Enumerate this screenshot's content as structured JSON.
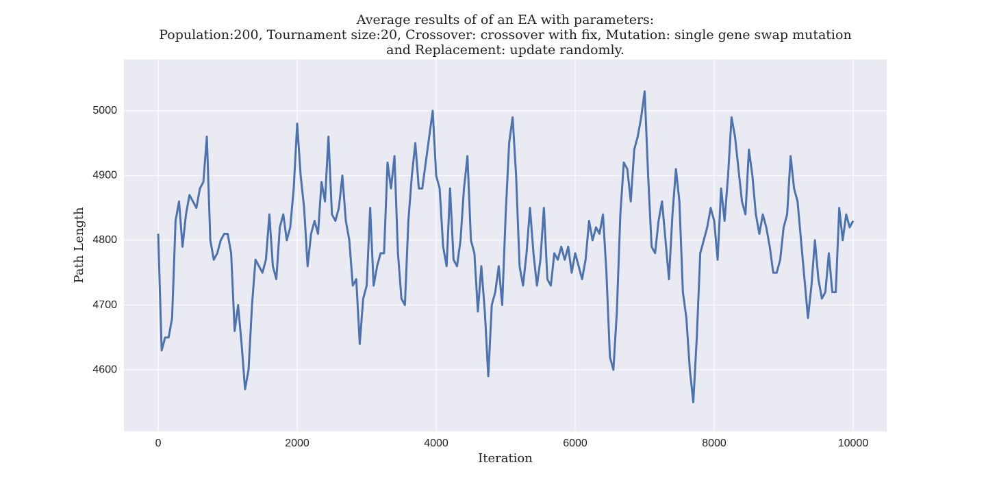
{
  "chart_data": {
    "type": "line",
    "title": [
      "Average results of of an EA with parameters:",
      "Population:200, Tournament size:20, Crossover: crossover with fix, Mutation: single gene swap mutation",
      "and Replacement: update randomly."
    ],
    "xlabel": "Iteration",
    "ylabel": "Path Length",
    "x": [
      0,
      50,
      100,
      150,
      200,
      250,
      300,
      350,
      400,
      450,
      500,
      550,
      600,
      650,
      700,
      750,
      800,
      850,
      900,
      950,
      1000,
      1050,
      1100,
      1150,
      1200,
      1250,
      1300,
      1350,
      1400,
      1450,
      1500,
      1550,
      1600,
      1650,
      1700,
      1750,
      1800,
      1850,
      1900,
      1950,
      2000,
      2050,
      2100,
      2150,
      2200,
      2250,
      2300,
      2350,
      2400,
      2450,
      2500,
      2550,
      2600,
      2650,
      2700,
      2750,
      2800,
      2850,
      2900,
      2950,
      3000,
      3050,
      3100,
      3150,
      3200,
      3250,
      3300,
      3350,
      3400,
      3450,
      3500,
      3550,
      3600,
      3650,
      3700,
      3750,
      3800,
      3850,
      3900,
      3950,
      4000,
      4050,
      4100,
      4150,
      4200,
      4250,
      4300,
      4350,
      4400,
      4450,
      4500,
      4550,
      4600,
      4650,
      4700,
      4750,
      4800,
      4850,
      4900,
      4950,
      5000,
      5050,
      5100,
      5150,
      5200,
      5250,
      5300,
      5350,
      5400,
      5450,
      5500,
      5550,
      5600,
      5650,
      5700,
      5750,
      5800,
      5850,
      5900,
      5950,
      6000,
      6050,
      6100,
      6150,
      6200,
      6250,
      6300,
      6350,
      6400,
      6450,
      6500,
      6550,
      6600,
      6650,
      6700,
      6750,
      6800,
      6850,
      6900,
      6950,
      7000,
      7050,
      7100,
      7150,
      7200,
      7250,
      7300,
      7350,
      7400,
      7450,
      7500,
      7550,
      7600,
      7650,
      7700,
      7750,
      7800,
      7850,
      7900,
      7950,
      8000,
      8050,
      8100,
      8150,
      8200,
      8250,
      8300,
      8350,
      8400,
      8450,
      8500,
      8550,
      8600,
      8650,
      8700,
      8750,
      8800,
      8850,
      8900,
      8950,
      9000,
      9050,
      9100,
      9150,
      9200,
      9250,
      9300,
      9350,
      9400,
      9450,
      9500,
      9550,
      9600,
      9650,
      9700,
      9750,
      9800,
      9850,
      9900,
      9950,
      10000
    ],
    "series": [
      {
        "name": "Path Length",
        "color": "#4c72b0",
        "values": [
          4810,
          4630,
          4650,
          4650,
          4680,
          4830,
          4860,
          4790,
          4840,
          4870,
          4860,
          4850,
          4880,
          4890,
          4960,
          4800,
          4770,
          4780,
          4800,
          4810,
          4810,
          4780,
          4660,
          4700,
          4640,
          4570,
          4600,
          4700,
          4770,
          4760,
          4750,
          4770,
          4840,
          4760,
          4740,
          4820,
          4840,
          4800,
          4820,
          4880,
          4980,
          4900,
          4850,
          4760,
          4810,
          4830,
          4810,
          4890,
          4860,
          4960,
          4840,
          4830,
          4850,
          4900,
          4830,
          4800,
          4730,
          4740,
          4640,
          4710,
          4730,
          4850,
          4730,
          4760,
          4780,
          4780,
          4920,
          4880,
          4930,
          4780,
          4710,
          4700,
          4830,
          4900,
          4950,
          4880,
          4880,
          4920,
          4960,
          5000,
          4900,
          4880,
          4790,
          4760,
          4880,
          4770,
          4760,
          4800,
          4880,
          4930,
          4800,
          4780,
          4690,
          4760,
          4690,
          4590,
          4700,
          4720,
          4760,
          4700,
          4840,
          4950,
          4990,
          4900,
          4760,
          4730,
          4780,
          4850,
          4780,
          4730,
          4770,
          4850,
          4740,
          4730,
          4780,
          4770,
          4790,
          4770,
          4790,
          4750,
          4780,
          4760,
          4740,
          4770,
          4830,
          4800,
          4820,
          4810,
          4840,
          4750,
          4620,
          4600,
          4690,
          4840,
          4920,
          4910,
          4860,
          4940,
          4960,
          4990,
          5030,
          4900,
          4790,
          4780,
          4830,
          4860,
          4800,
          4740,
          4840,
          4910,
          4860,
          4720,
          4680,
          4600,
          4550,
          4650,
          4780,
          4800,
          4820,
          4850,
          4830,
          4770,
          4880,
          4830,
          4900,
          4990,
          4960,
          4910,
          4860,
          4840,
          4940,
          4900,
          4840,
          4810,
          4840,
          4820,
          4790,
          4750,
          4750,
          4770,
          4820,
          4840,
          4930,
          4880,
          4860,
          4800,
          4740,
          4680,
          4730,
          4800,
          4740,
          4710,
          4720,
          4780,
          4720,
          4720,
          4850,
          4800,
          4840,
          4820,
          4830
        ]
      }
    ],
    "xlim": [
      -493,
      10483
    ],
    "ylim": [
      4505,
      5079
    ],
    "xticks": [
      0,
      2000,
      4000,
      6000,
      8000,
      10000
    ],
    "yticks": [
      4600,
      4700,
      4800,
      4900,
      5000
    ],
    "grid": true
  }
}
